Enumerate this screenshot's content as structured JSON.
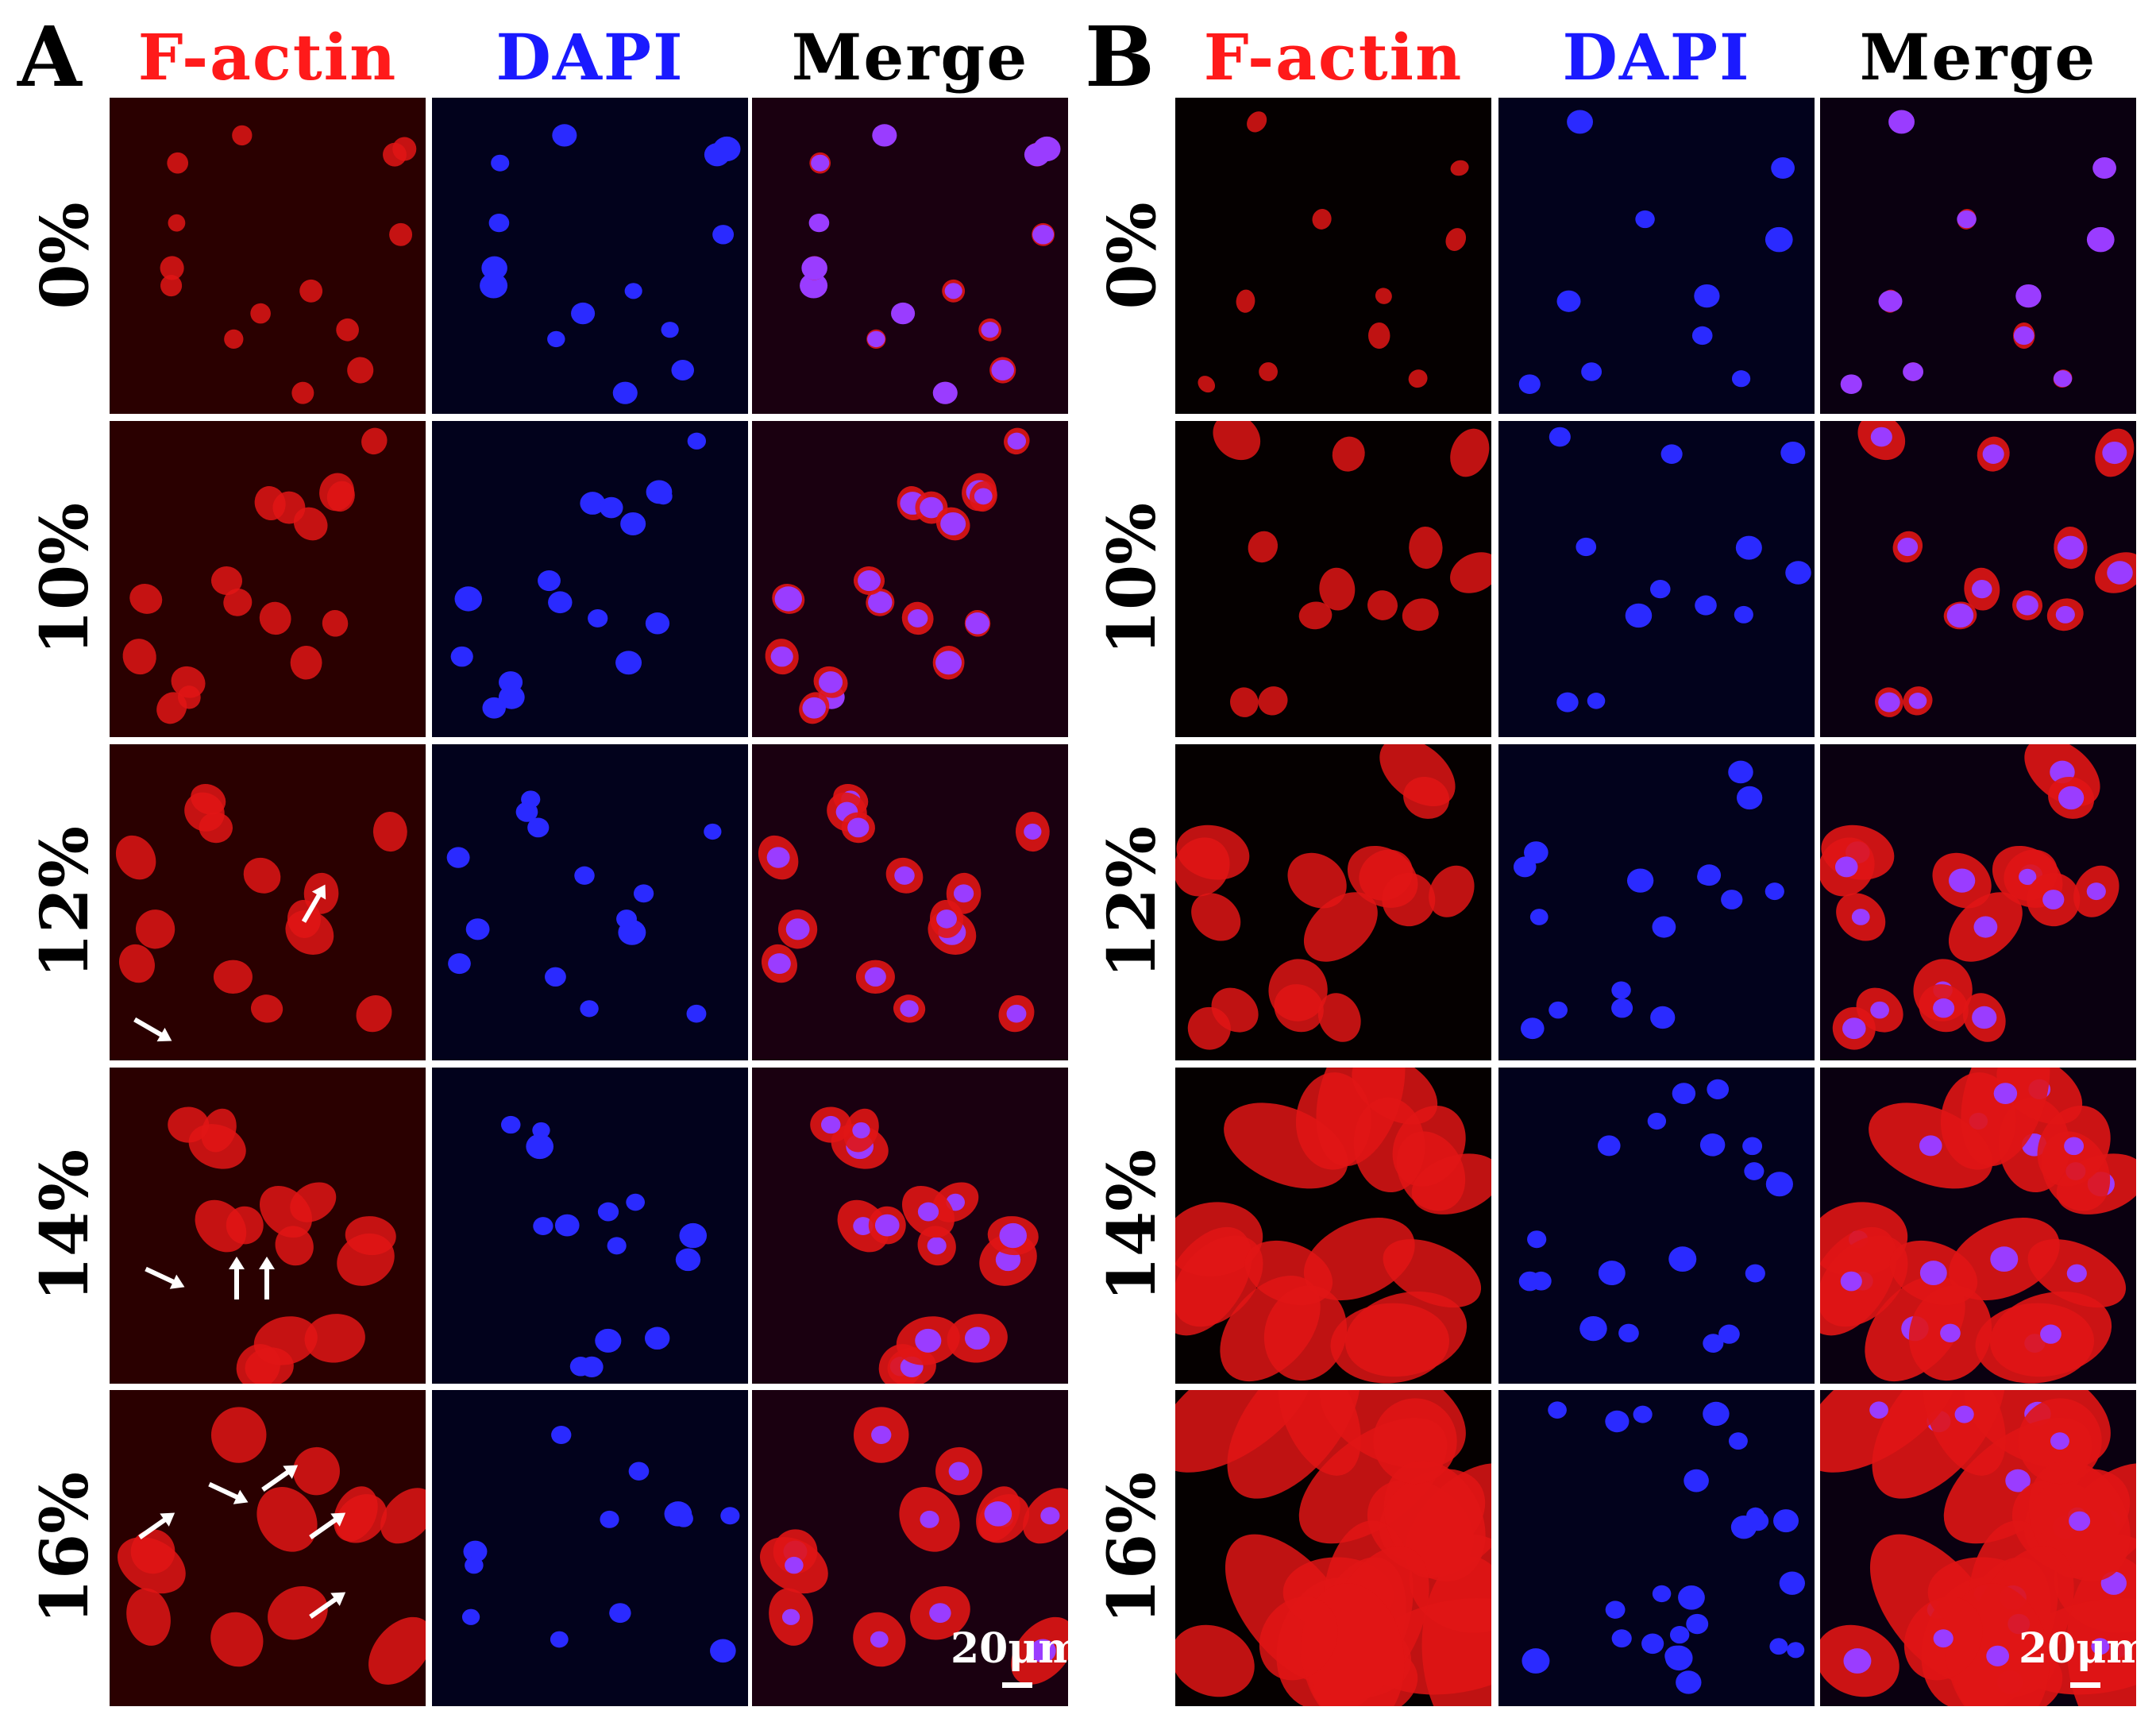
{
  "panels": [
    {
      "letter": "A",
      "columns": [
        "F-actin",
        "DAPI",
        "Merge"
      ]
    },
    {
      "letter": "B",
      "columns": [
        "F-actin",
        "DAPI",
        "Merge"
      ]
    }
  ],
  "rows": [
    "0%",
    "10%",
    "12%",
    "14%",
    "16%"
  ],
  "scale_bar": "20μm",
  "colors": {
    "f_actin": "#ff1a1a",
    "dapi": "#1a1aff",
    "merge": "#000000",
    "cell_red": "#e01515",
    "nucleus_blue": "#2a2aff",
    "merge_nucleus": "#9a3cff"
  }
}
